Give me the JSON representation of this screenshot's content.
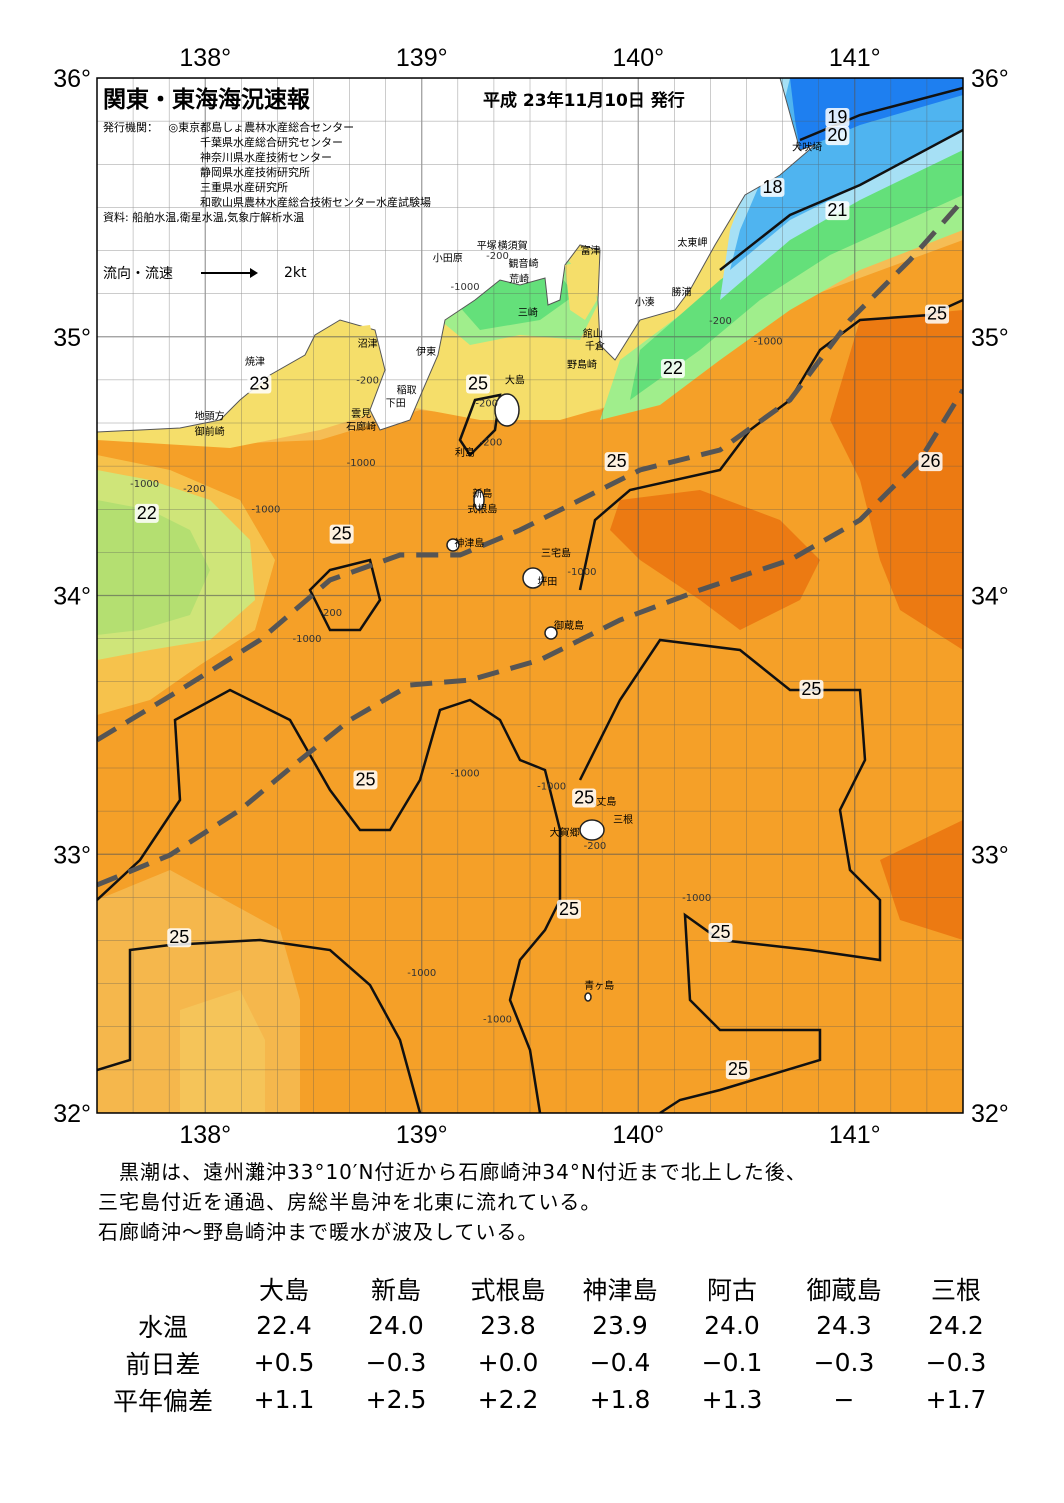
{
  "header": {
    "title": "関東・東海海況速報",
    "date": "平成 23年11月10日 発行",
    "issuer_label": "発行機関：",
    "issuers": [
      "◎東京都島しょ農林水産総合センター",
      "千葉県水産総合研究センター",
      "神奈川県水産技術センター",
      "静岡県水産技術研究所",
      "三重県水産研究所",
      "和歌山県農林水産総合技術センター水産試験場"
    ],
    "source": "資料: 船舶水温,衛星水温,気象庁解析水温",
    "flow_label": "流向・流速",
    "flow_unit": "2kt"
  },
  "map": {
    "lon_labels": [
      "138°",
      "139°",
      "140°",
      "141°"
    ],
    "lat_labels": [
      "36°",
      "35°",
      "34°",
      "33°",
      "32°"
    ],
    "lon_range": [
      137.5,
      141.5
    ],
    "lat_range": [
      32,
      36
    ],
    "colors": {
      "deep_blue": "#1e7ff0",
      "blue": "#4fb4f0",
      "light_blue": "#a6e0f5",
      "green": "#64e07a",
      "light_green": "#a0ee8c",
      "yellow": "#f5de6a",
      "light_orange": "#f5bd55",
      "orange": "#f5a028",
      "dark_orange": "#ec7a12",
      "land": "#ffffff",
      "kuroshio_axis": "#555555"
    },
    "places": [
      {
        "name": "犬吠埼",
        "lon": 140.78,
        "lat": 35.72
      },
      {
        "name": "太東岬",
        "lon": 140.25,
        "lat": 35.35
      },
      {
        "name": "勝浦",
        "lon": 140.2,
        "lat": 35.16
      },
      {
        "name": "小湊",
        "lon": 140.03,
        "lat": 35.12
      },
      {
        "name": "富津",
        "lon": 139.78,
        "lat": 35.32
      },
      {
        "name": "観音崎",
        "lon": 139.47,
        "lat": 35.27
      },
      {
        "name": "横須賀",
        "lon": 139.42,
        "lat": 35.34
      },
      {
        "name": "平塚",
        "lon": 139.3,
        "lat": 35.34
      },
      {
        "name": "荒崎",
        "lon": 139.45,
        "lat": 35.21
      },
      {
        "name": "三崎",
        "lon": 139.49,
        "lat": 35.08
      },
      {
        "name": "小田原",
        "lon": 139.12,
        "lat": 35.29
      },
      {
        "name": "館山",
        "lon": 139.79,
        "lat": 35.0
      },
      {
        "name": "千倉",
        "lon": 139.8,
        "lat": 34.95
      },
      {
        "name": "野島崎",
        "lon": 139.74,
        "lat": 34.88
      },
      {
        "name": "沼津",
        "lon": 138.75,
        "lat": 34.96
      },
      {
        "name": "伊東",
        "lon": 139.02,
        "lat": 34.93
      },
      {
        "name": "焼津",
        "lon": 138.23,
        "lat": 34.89
      },
      {
        "name": "稲取",
        "lon": 138.93,
        "lat": 34.78
      },
      {
        "name": "下田",
        "lon": 138.88,
        "lat": 34.73
      },
      {
        "name": "雲見",
        "lon": 138.72,
        "lat": 34.69
      },
      {
        "name": "石廊崎",
        "lon": 138.72,
        "lat": 34.64
      },
      {
        "name": "地頭方",
        "lon": 138.02,
        "lat": 34.68
      },
      {
        "name": "御前崎",
        "lon": 138.02,
        "lat": 34.62
      },
      {
        "name": "大島",
        "lon": 139.43,
        "lat": 34.82
      },
      {
        "name": "利島",
        "lon": 139.2,
        "lat": 34.54
      },
      {
        "name": "新島",
        "lon": 139.28,
        "lat": 34.38
      },
      {
        "name": "式根島",
        "lon": 139.28,
        "lat": 34.32
      },
      {
        "name": "神津島",
        "lon": 139.22,
        "lat": 34.19
      },
      {
        "name": "三宅島",
        "lon": 139.62,
        "lat": 34.15
      },
      {
        "name": "坪田",
        "lon": 139.58,
        "lat": 34.04
      },
      {
        "name": "御蔵島",
        "lon": 139.68,
        "lat": 33.87
      },
      {
        "name": "八丈島",
        "lon": 139.83,
        "lat": 33.19
      },
      {
        "name": "三根",
        "lon": 139.93,
        "lat": 33.12
      },
      {
        "name": "大賀郷",
        "lon": 139.66,
        "lat": 33.07
      },
      {
        "name": "青ヶ島",
        "lon": 139.82,
        "lat": 32.48
      }
    ],
    "isotherm_labels": [
      {
        "text": "19",
        "lon": 140.92,
        "lat": 35.83
      },
      {
        "text": "20",
        "lon": 140.92,
        "lat": 35.76
      },
      {
        "text": "18",
        "lon": 140.62,
        "lat": 35.56
      },
      {
        "text": "21",
        "lon": 140.92,
        "lat": 35.47
      },
      {
        "text": "22",
        "lon": 140.16,
        "lat": 34.86
      },
      {
        "text": "25",
        "lon": 141.38,
        "lat": 35.07
      },
      {
        "text": "26",
        "lon": 141.35,
        "lat": 34.5
      },
      {
        "text": "23",
        "lon": 138.25,
        "lat": 34.8
      },
      {
        "text": "25",
        "lon": 139.26,
        "lat": 34.8
      },
      {
        "text": "25",
        "lon": 139.9,
        "lat": 34.5
      },
      {
        "text": "22",
        "lon": 137.73,
        "lat": 34.3
      },
      {
        "text": "25",
        "lon": 138.63,
        "lat": 34.22
      },
      {
        "text": "25",
        "lon": 140.8,
        "lat": 33.62
      },
      {
        "text": "25",
        "lon": 138.74,
        "lat": 33.27
      },
      {
        "text": "25",
        "lon": 139.75,
        "lat": 33.2
      },
      {
        "text": "25",
        "lon": 139.68,
        "lat": 32.77
      },
      {
        "text": "25",
        "lon": 140.38,
        "lat": 32.68
      },
      {
        "text": "25",
        "lon": 137.88,
        "lat": 32.66
      },
      {
        "text": "25",
        "lon": 140.46,
        "lat": 32.15
      }
    ],
    "depth_labels": [
      {
        "text": "-200",
        "lon": 139.35,
        "lat": 35.3
      },
      {
        "text": "-1000",
        "lon": 139.2,
        "lat": 35.18
      },
      {
        "text": "-200",
        "lon": 140.38,
        "lat": 35.05
      },
      {
        "text": "-1000",
        "lon": 140.6,
        "lat": 34.97
      },
      {
        "text": "-200",
        "lon": 138.75,
        "lat": 34.82
      },
      {
        "text": "-200",
        "lon": 139.3,
        "lat": 34.73
      },
      {
        "text": "-200",
        "lon": 139.32,
        "lat": 34.58
      },
      {
        "text": "-1000",
        "lon": 138.72,
        "lat": 34.5
      },
      {
        "text": "-1000",
        "lon": 137.72,
        "lat": 34.42
      },
      {
        "text": "-200",
        "lon": 137.95,
        "lat": 34.4
      },
      {
        "text": "-1000",
        "lon": 138.28,
        "lat": 34.32
      },
      {
        "text": "-1000",
        "lon": 139.74,
        "lat": 34.08
      },
      {
        "text": "-200",
        "lon": 138.58,
        "lat": 33.92
      },
      {
        "text": "-1000",
        "lon": 138.47,
        "lat": 33.82
      },
      {
        "text": "-1000",
        "lon": 139.2,
        "lat": 33.3
      },
      {
        "text": "-1000",
        "lon": 139.6,
        "lat": 33.25
      },
      {
        "text": "-200",
        "lon": 139.8,
        "lat": 33.02
      },
      {
        "text": "-1000",
        "lon": 140.27,
        "lat": 32.82
      },
      {
        "text": "-1000",
        "lon": 139.0,
        "lat": 32.53
      },
      {
        "text": "-1000",
        "lon": 139.35,
        "lat": 32.35
      }
    ]
  },
  "summary": [
    "　黒潮は、遠州灘沖33°10′N付近から石廊崎沖34°N付近まで北上した後、",
    "三宅島付近を通過、房総半島沖を北東に流れている。",
    "石廊崎沖～野島崎沖まで暖水が波及している。"
  ],
  "table": {
    "columns": [
      "大島",
      "新島",
      "式根島",
      "神津島",
      "阿古",
      "御蔵島",
      "三根"
    ],
    "rows": [
      {
        "label": "水温",
        "values": [
          "22.4",
          "24.0",
          "23.8",
          "23.9",
          "24.0",
          "24.3",
          "24.2"
        ]
      },
      {
        "label": "前日差",
        "values": [
          "+0.5",
          "−0.3",
          "+0.0",
          "−0.4",
          "−0.1",
          "−0.3",
          "−0.3"
        ]
      },
      {
        "label": "平年偏差",
        "values": [
          "+1.1",
          "+2.5",
          "+2.2",
          "+1.8",
          "+1.3",
          "−",
          "+1.7"
        ]
      }
    ]
  }
}
